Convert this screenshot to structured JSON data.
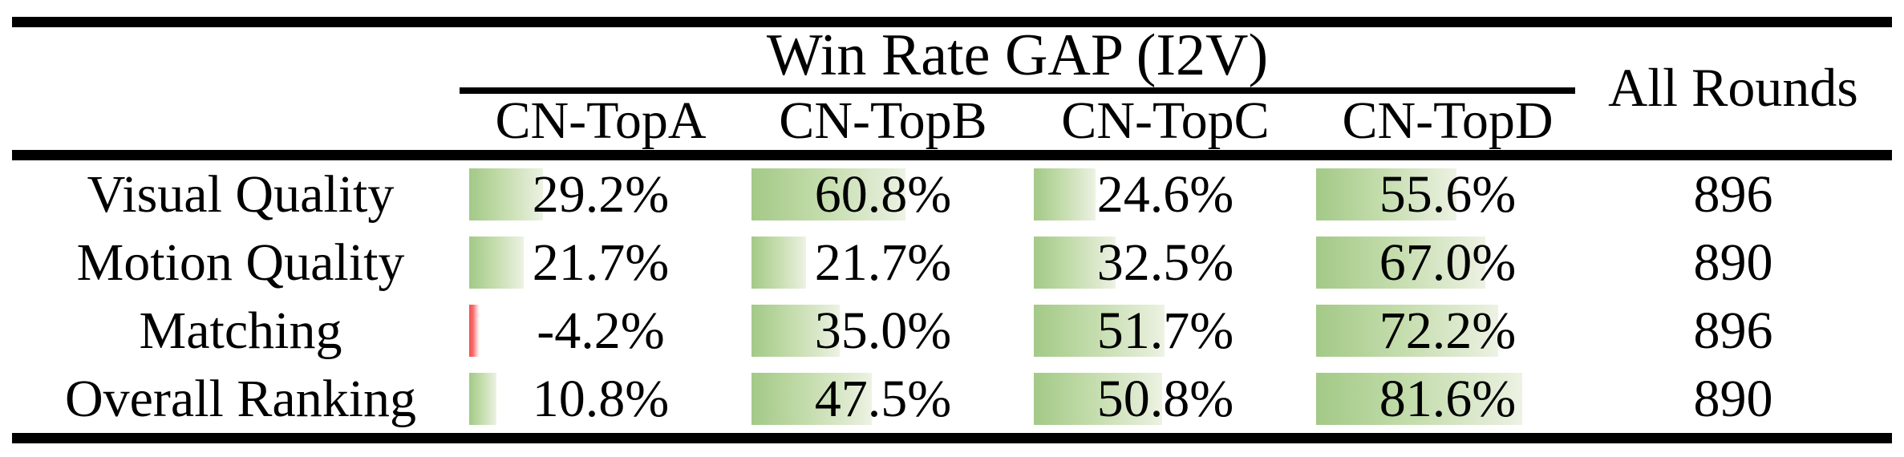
{
  "table": {
    "title": "Win Rate GAP (I2V)",
    "all_rounds_header": "All Rounds",
    "columns": [
      "CN-TopA",
      "CN-TopB",
      "CN-TopC",
      "CN-TopD"
    ],
    "rows": [
      {
        "label": "Visual Quality",
        "cells": [
          {
            "text": "29.2%",
            "pct": 29.2
          },
          {
            "text": "60.8%",
            "pct": 60.8
          },
          {
            "text": "24.6%",
            "pct": 24.6
          },
          {
            "text": "55.6%",
            "pct": 55.6
          }
        ],
        "all_rounds": "896"
      },
      {
        "label": "Motion Quality",
        "cells": [
          {
            "text": "21.7%",
            "pct": 21.7
          },
          {
            "text": "21.7%",
            "pct": 21.7
          },
          {
            "text": "32.5%",
            "pct": 32.5
          },
          {
            "text": "67.0%",
            "pct": 67.0
          }
        ],
        "all_rounds": "890"
      },
      {
        "label": "Matching",
        "cells": [
          {
            "text": "-4.2%",
            "pct": -4.2
          },
          {
            "text": "35.0%",
            "pct": 35.0
          },
          {
            "text": "51.7%",
            "pct": 51.7
          },
          {
            "text": "72.2%",
            "pct": 72.2
          }
        ],
        "all_rounds": "896"
      },
      {
        "label": "Overall Ranking",
        "cells": [
          {
            "text": "10.8%",
            "pct": 10.8
          },
          {
            "text": "47.5%",
            "pct": 47.5
          },
          {
            "text": "50.8%",
            "pct": 50.8
          },
          {
            "text": "81.6%",
            "pct": 81.6
          }
        ],
        "all_rounds": "890"
      }
    ],
    "colors": {
      "positive_bar_start": "#a3c987",
      "positive_bar_end": "#edf3e4",
      "negative_bar": "#f14f4f",
      "rule": "#000000",
      "text": "#000000",
      "background": "#ffffff"
    }
  },
  "chart_data": {
    "type": "table",
    "title": "Win Rate GAP (I2V)",
    "categories": [
      "Visual Quality",
      "Motion Quality",
      "Matching",
      "Overall Ranking"
    ],
    "series": [
      {
        "name": "CN-TopA",
        "values": [
          29.2,
          21.7,
          -4.2,
          10.8
        ]
      },
      {
        "name": "CN-TopB",
        "values": [
          60.8,
          21.7,
          35.0,
          47.5
        ]
      },
      {
        "name": "CN-TopC",
        "values": [
          24.6,
          32.5,
          51.7,
          50.8
        ]
      },
      {
        "name": "CN-TopD",
        "values": [
          55.6,
          67.0,
          72.2,
          81.6
        ]
      }
    ],
    "all_rounds": [
      896,
      890,
      896,
      890
    ],
    "unit": "%",
    "layout": "in-cell data bars, green positive, red negative, bar length proportional to value"
  }
}
